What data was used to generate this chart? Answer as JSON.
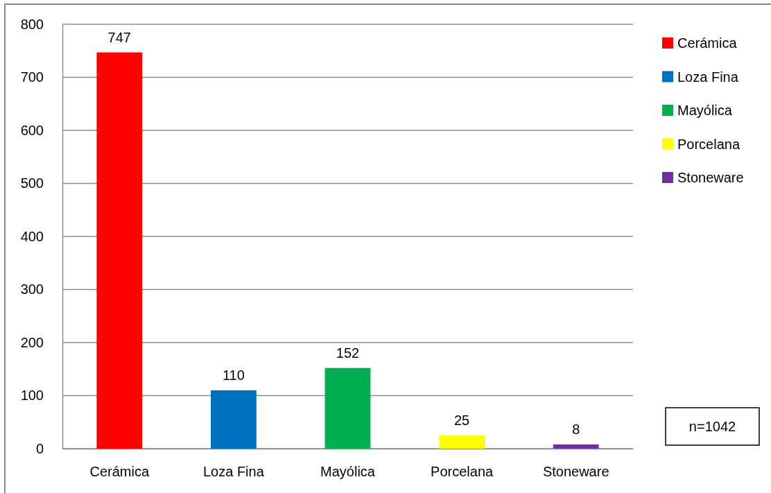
{
  "chart_data": {
    "type": "bar",
    "categories": [
      "Cerámica",
      "Loza Fina",
      "Mayólica",
      "Porcelana",
      "Stoneware"
    ],
    "series": [
      {
        "name": "Cerámica",
        "color": "#ff0000",
        "values": [
          747,
          null,
          null,
          null,
          null
        ]
      },
      {
        "name": "Loza Fina",
        "color": "#0070c0",
        "values": [
          null,
          110,
          null,
          null,
          null
        ]
      },
      {
        "name": "Mayólica",
        "color": "#00b050",
        "values": [
          null,
          null,
          152,
          null,
          null
        ]
      },
      {
        "name": "Porcelana",
        "color": "#ffff00",
        "values": [
          null,
          null,
          null,
          25,
          null
        ]
      },
      {
        "name": "Stoneware",
        "color": "#7030a0",
        "values": [
          null,
          null,
          null,
          null,
          8
        ]
      }
    ],
    "stacked": true,
    "ylim": [
      0,
      800
    ],
    "yticks": [
      0,
      100,
      200,
      300,
      400,
      500,
      600,
      700,
      800
    ],
    "grid": "y",
    "legend": "right",
    "data_labels": true,
    "annotations": [
      "n=1042"
    ]
  }
}
